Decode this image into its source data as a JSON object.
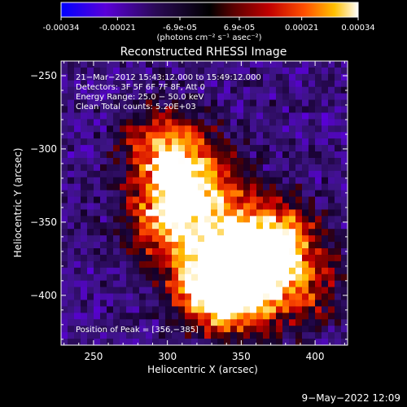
{
  "colorbar": {
    "tick_labels": [
      "-0.00034",
      "-0.00021",
      "-6.9e-05",
      "6.9e-05",
      "0.00021",
      "0.00034"
    ],
    "unit_label": "(photons cm⁻² s⁻¹ asec⁻²)",
    "range": [
      -0.00034,
      0.00034
    ],
    "colors": [
      "#0000ff",
      "#5a00d8",
      "#2a0a55",
      "#000000",
      "#5a0000",
      "#c00000",
      "#ff5000",
      "#ffc000",
      "#ffffff"
    ]
  },
  "chart_data": {
    "type": "heatmap",
    "title": "Reconstructed RHESSI Image",
    "xlabel": "Heliocentric X (arcsec)",
    "ylabel": "Heliocentric Y (arcsec)",
    "xlim": [
      228,
      422
    ],
    "ylim": [
      -434,
      -240
    ],
    "x_ticks": [
      250,
      300,
      350,
      400
    ],
    "y_ticks": [
      -250,
      -300,
      -350,
      -400
    ],
    "x_tick_labels": [
      "250",
      "300",
      "350",
      "400"
    ],
    "y_tick_labels": [
      "−250",
      "−300",
      "−350",
      "−400"
    ],
    "annotations": [
      "21−Mar−2012 15:43:12.000 to 15:49:12.000",
      "Detectors: 3F 5F 6F 7F 8F, Att 0",
      "Energy Range: 25.0 − 50.0 keV",
      "Clean    Total counts: 5.20E+03"
    ],
    "peak_label": "Position of Peak = [356,−385]",
    "peak": [
      356,
      -385
    ],
    "emission_sources": [
      {
        "x": 300,
        "y": -302,
        "peak": 0.92
      },
      {
        "x": 325,
        "y": -330,
        "peak": 0.75
      },
      {
        "x": 300,
        "y": -348,
        "peak": 0.8
      },
      {
        "x": 350,
        "y": -378,
        "peak": 1.0
      },
      {
        "x": 372,
        "y": -360,
        "peak": 0.85
      },
      {
        "x": 325,
        "y": -390,
        "peak": 0.72
      },
      {
        "x": 345,
        "y": -402,
        "peak": 0.7
      },
      {
        "x": 390,
        "y": -395,
        "peak": 0.55
      }
    ]
  },
  "footer": {
    "date": "9−May−2022 12:09"
  }
}
